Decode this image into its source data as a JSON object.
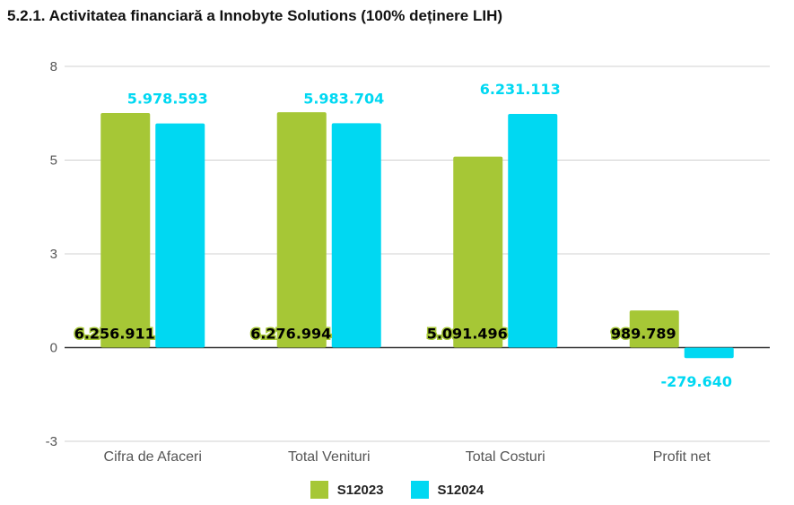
{
  "chart_data": {
    "type": "bar",
    "title": "5.2.1. Activitatea financiară a Innobyte Solutions (100% deținere LIH)",
    "categories": [
      "Cifra de Afaceri",
      "Total Venituri",
      "Total Costuri",
      "Profit net"
    ],
    "series": [
      {
        "name": "S12023",
        "color": "#a6c736",
        "values": [
          6256911,
          6276994,
          5091496,
          989789
        ],
        "labels": [
          "6.256.911",
          "6.276.994",
          "5.091.496",
          "989.789"
        ]
      },
      {
        "name": "S12024",
        "color": "#00d8f2",
        "values": [
          5978593,
          5983704,
          6231113,
          -279640
        ],
        "labels": [
          "5.978.593",
          "5.983.704",
          "6.231.113",
          "-279.640"
        ]
      }
    ],
    "y_ticks": [
      "8",
      "5",
      "3",
      "0",
      "-3"
    ],
    "ylim": [
      -2500000,
      7500000
    ],
    "grid": true,
    "legend_position": "bottom"
  }
}
